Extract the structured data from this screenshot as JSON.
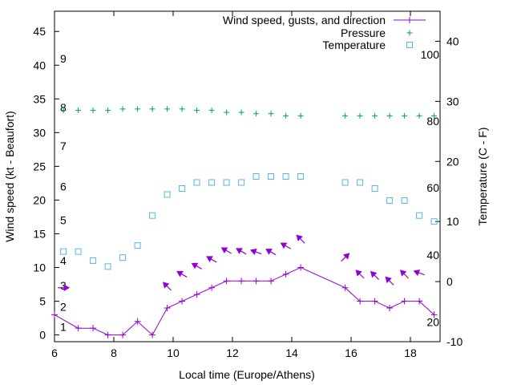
{
  "chart_data": {
    "type": "line",
    "xlabel": "Local time (Europe/Athens)",
    "ylabel": "Wind speed (kt - Beaufort)",
    "y2label": "Temperature (C - F)",
    "xlim": [
      6,
      19
    ],
    "ylim": [
      -1,
      48
    ],
    "y2lim": [
      -10,
      45
    ],
    "x_ticks": [
      6,
      8,
      10,
      12,
      14,
      16,
      18
    ],
    "y_ticks": [
      0,
      5,
      10,
      15,
      20,
      25,
      30,
      35,
      40,
      45
    ],
    "y2_ticks": [
      -10,
      0,
      10,
      20,
      30,
      40
    ],
    "beaufort_labels": [
      {
        "label": "1",
        "y": 1.2
      },
      {
        "label": "2",
        "y": 4.2
      },
      {
        "label": "3",
        "y": 7.3
      },
      {
        "label": "4",
        "y": 11.0
      },
      {
        "label": "5",
        "y": 17.0
      },
      {
        "label": "6",
        "y": 22.0
      },
      {
        "label": "7",
        "y": 28.0
      },
      {
        "label": "8",
        "y": 33.7
      },
      {
        "label": "9",
        "y": 41.0
      }
    ],
    "fahrenheit_labels": [
      {
        "label": "20",
        "temp": -6.7
      },
      {
        "label": "40",
        "temp": 4.4
      },
      {
        "label": "60",
        "temp": 15.6
      },
      {
        "label": "80",
        "temp": 26.7
      },
      {
        "label": "100",
        "temp": 37.8
      }
    ],
    "legend_position": "top-right",
    "series": [
      {
        "name": "Wind speed, gusts, and direction",
        "color": "#9400d3",
        "marker": "plus-line",
        "x": [
          6.0,
          6.8,
          7.3,
          7.8,
          8.3,
          8.8,
          9.3,
          9.8,
          10.3,
          10.8,
          11.3,
          11.8,
          12.3,
          12.8,
          13.3,
          13.8,
          14.3,
          15.8,
          16.3,
          16.8,
          17.3,
          17.8,
          18.3,
          18.8
        ],
        "values": [
          3,
          1,
          1,
          0,
          0,
          2,
          0,
          4,
          5,
          6,
          7,
          8,
          8,
          8,
          8,
          9,
          10,
          7,
          5,
          5,
          4,
          5,
          5,
          3
        ]
      },
      {
        "name": "Pressure",
        "color": "#009e73",
        "marker": "plus",
        "x": [
          6.3,
          6.8,
          7.3,
          7.8,
          8.3,
          8.8,
          9.3,
          9.8,
          10.3,
          10.8,
          11.3,
          11.8,
          12.3,
          12.8,
          13.3,
          13.8,
          14.3,
          15.8,
          16.3,
          16.8,
          17.3,
          17.8,
          18.3,
          18.8
        ],
        "values": [
          33.3,
          33.3,
          33.3,
          33.3,
          33.5,
          33.5,
          33.5,
          33.5,
          33.5,
          33.3,
          33.3,
          33.0,
          33.0,
          32.8,
          32.8,
          32.5,
          32.5,
          32.5,
          32.5,
          32.5,
          32.5,
          32.5,
          32.5,
          32.5
        ]
      },
      {
        "name": "Temperature",
        "color": "#56b4e9",
        "marker": "square",
        "x": [
          6.3,
          6.8,
          7.3,
          7.8,
          8.3,
          8.8,
          9.3,
          9.8,
          10.3,
          10.8,
          11.3,
          11.8,
          12.3,
          12.8,
          13.3,
          13.8,
          14.3,
          15.8,
          16.3,
          16.8,
          17.3,
          17.8,
          18.3,
          18.8
        ],
        "values_y2": [
          5,
          5,
          3.5,
          2.5,
          4,
          6,
          11,
          14.5,
          15.5,
          16.5,
          16.5,
          16.5,
          16.5,
          17.5,
          17.5,
          17.5,
          17.5,
          16.5,
          16.5,
          15.5,
          13.5,
          13.5,
          11,
          10
        ]
      }
    ],
    "wind_arrows": [
      {
        "x": 6.3,
        "y": 7,
        "angle": 0
      },
      {
        "x": 9.8,
        "y": 7.2,
        "angle": 225
      },
      {
        "x": 10.3,
        "y": 9,
        "angle": 210
      },
      {
        "x": 10.8,
        "y": 10.2,
        "angle": 210
      },
      {
        "x": 11.3,
        "y": 11.2,
        "angle": 210
      },
      {
        "x": 11.8,
        "y": 12.5,
        "angle": 210
      },
      {
        "x": 12.3,
        "y": 12.4,
        "angle": 210
      },
      {
        "x": 12.8,
        "y": 12.3,
        "angle": 200
      },
      {
        "x": 13.3,
        "y": 12.3,
        "angle": 210
      },
      {
        "x": 13.8,
        "y": 13.2,
        "angle": 210
      },
      {
        "x": 14.3,
        "y": 14.2,
        "angle": 225
      },
      {
        "x": 15.8,
        "y": 11.5,
        "angle": 315
      },
      {
        "x": 16.3,
        "y": 9.0,
        "angle": 225
      },
      {
        "x": 16.8,
        "y": 8.8,
        "angle": 225
      },
      {
        "x": 17.3,
        "y": 8.0,
        "angle": 225
      },
      {
        "x": 17.8,
        "y": 9.0,
        "angle": 225
      },
      {
        "x": 18.3,
        "y": 9.2,
        "angle": 200
      }
    ]
  }
}
